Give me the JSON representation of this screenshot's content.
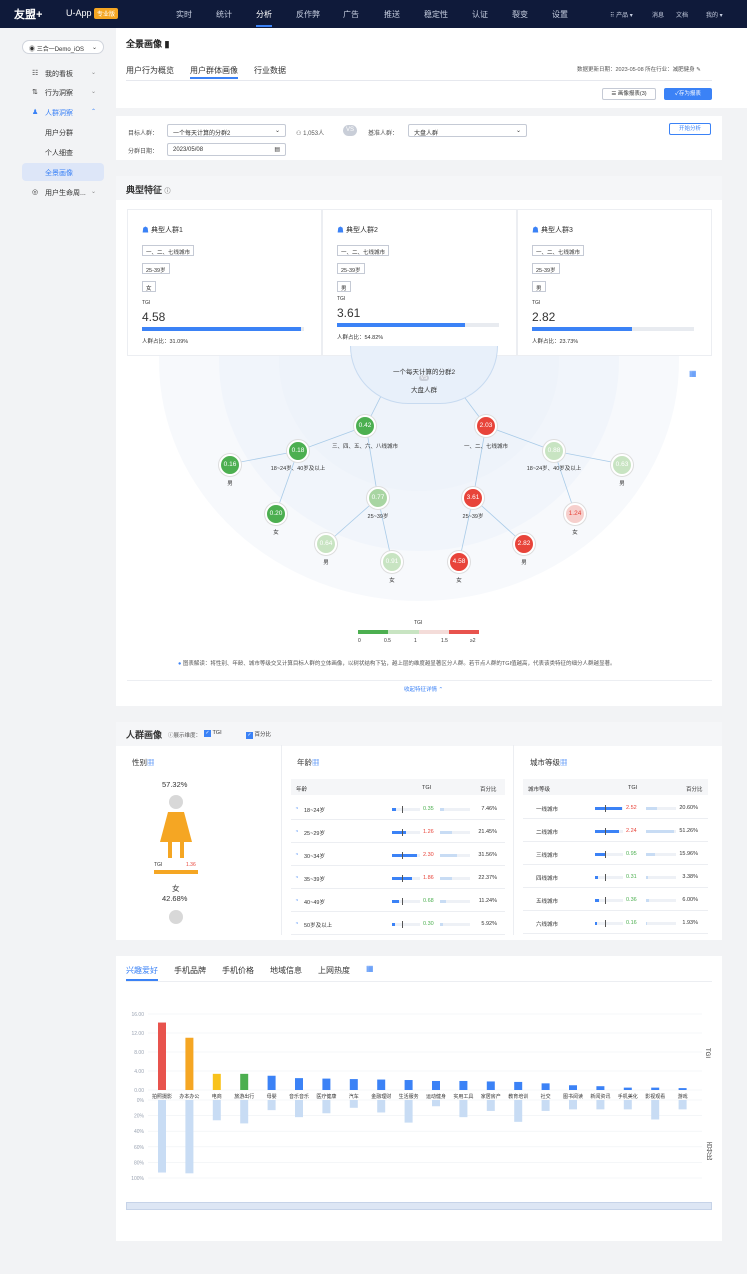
{
  "header": {
    "logo": "友盟+",
    "app": "U-App",
    "app_tag": "专业版",
    "nav": [
      "实时",
      "统计",
      "分析",
      "反作弊",
      "广告",
      "推送",
      "稳定性",
      "认证",
      "裂变",
      "设置"
    ],
    "nav_active": 2,
    "right": [
      "产品",
      "消息",
      "文档",
      "我的"
    ]
  },
  "sidebar": {
    "app_select": "三合一Demo_iOS",
    "items": [
      {
        "label": "我的看板",
        "icon": "☷"
      },
      {
        "label": "行为洞察",
        "icon": "⇅"
      },
      {
        "label": "人群洞察",
        "icon": "♟"
      }
    ],
    "sub": [
      "用户分群",
      "个人细查",
      "全景画像"
    ],
    "last": "用户生命周..."
  },
  "page": {
    "title": "全景画像",
    "tabs": [
      "用户行为概览",
      "用户群体画像",
      "行业数据"
    ],
    "active_tab": 1,
    "update_info": "数据更新日期：2023-05-08 所在行业：减肥健身",
    "report_btn": "画像报表(3)",
    "save_btn": "存为报表"
  },
  "filter": {
    "target_label": "目标人群：",
    "target_value": "一个每天计算的分群2",
    "count": "1,053人",
    "vs": "VS",
    "base_label": "基准人群：",
    "base_value": "大盘人群",
    "date_label": "分群日期：",
    "date_value": "2023/05/08",
    "analyze_btn": "开始分析"
  },
  "typical": {
    "title": "典型特征",
    "groups": [
      {
        "name": "典型人群1",
        "tags": [
          "一、二、七线城市",
          "25-39岁",
          "女"
        ],
        "tgi_label": "TGI",
        "tgi": "4.58",
        "share_label": "人群占比：31.09%",
        "fill": 0.98
      },
      {
        "name": "典型人群2",
        "tags": [
          "一、二、七线城市",
          "25-39岁",
          "男"
        ],
        "tgi_label": "TGI",
        "tgi": "3.61",
        "share_label": "人群占比：54.82%",
        "fill": 0.79
      },
      {
        "name": "典型人群3",
        "tags": [
          "一、二、七线城市",
          "25-39岁",
          "男"
        ],
        "tgi_label": "TGI",
        "tgi": "2.82",
        "share_label": "人群占比：23.73%",
        "fill": 0.62
      }
    ],
    "center_top": "一个每天计算的分群2",
    "center_vs": "VS",
    "center_bottom": "大盘人群",
    "tree": {
      "l_city": "三、四、五、六、八线城市",
      "r_city": "一、二、七线城市",
      "l_age1": "18~24岁、40岁及以上",
      "l_age2": "25~39岁",
      "r_age1": "18~24岁、40岁及以上",
      "r_age2": "25~39岁",
      "n1": "0.42",
      "n2": "2.03",
      "n3": "0.16",
      "n4": "0.18",
      "n5": "0.77",
      "n6": "3.61",
      "n7": "0.88",
      "n8": "0.63",
      "n9": "0.20",
      "n10": "0.64",
      "n11": "0.91",
      "n12": "4.58",
      "n13": "2.82",
      "n14": "1.24",
      "m": "男",
      "f": "女"
    },
    "legend": {
      "title": "TGI",
      "ticks": [
        "0",
        "0.5",
        "1",
        "1.5",
        "≥2"
      ]
    },
    "note": "图表解读：将性别、年龄、城市等级交叉计算目标人群的立体画像，以树状结构下钻，越上层的维度越显著区分人群。若节点人群的TGI值越高，代表该类特征的细分人群越显著。",
    "more": "收起特征详情"
  },
  "portrait": {
    "title": "人群画像",
    "dims_label": "展示维度：",
    "cb1": "TGI",
    "cb2": "百分比",
    "gender": {
      "title": "性别",
      "female_pct": "57.32%",
      "tgi_label": "TGI",
      "tgi": "1.36",
      "female": "女",
      "female_pct2": "42.68%"
    },
    "age": {
      "title": "年龄",
      "cols": [
        "年龄",
        "TGI",
        "百分比"
      ],
      "rows": [
        {
          "k": "18~24岁",
          "tgi": "0.35",
          "pct": "7.46%",
          "tgiv": 0.35,
          "pv": 0.0746
        },
        {
          "k": "25~29岁",
          "tgi": "1.26",
          "pct": "21.45%",
          "tgiv": 1.26,
          "pv": 0.2145
        },
        {
          "k": "30~34岁",
          "tgi": "2.30",
          "pct": "31.56%",
          "tgiv": 2.3,
          "pv": 0.3156
        },
        {
          "k": "35~39岁",
          "tgi": "1.86",
          "pct": "22.37%",
          "tgiv": 1.86,
          "pv": 0.2237
        },
        {
          "k": "40~49岁",
          "tgi": "0.68",
          "pct": "11.24%",
          "tgiv": 0.68,
          "pv": 0.1124
        },
        {
          "k": "50岁及以上",
          "tgi": "0.30",
          "pct": "5.92%",
          "tgiv": 0.3,
          "pv": 0.0592
        }
      ]
    },
    "city": {
      "title": "城市等级",
      "cols": [
        "城市等级",
        "TGI",
        "百分比"
      ],
      "rows": [
        {
          "k": "一线城市",
          "tgi": "2.52",
          "pct": "20.60%",
          "tgiv": 2.52,
          "pv": 0.206
        },
        {
          "k": "二线城市",
          "tgi": "2.24",
          "pct": "51.26%",
          "tgiv": 2.24,
          "pv": 0.5126
        },
        {
          "k": "三线城市",
          "tgi": "0.95",
          "pct": "15.96%",
          "tgiv": 0.95,
          "pv": 0.1596
        },
        {
          "k": "四线城市",
          "tgi": "0.31",
          "pct": "3.38%",
          "tgiv": 0.31,
          "pv": 0.0338
        },
        {
          "k": "五线城市",
          "tgi": "0.36",
          "pct": "6.00%",
          "tgiv": 0.36,
          "pv": 0.06
        },
        {
          "k": "六线城市",
          "tgi": "0.16",
          "pct": "1.93%",
          "tgiv": 0.16,
          "pv": 0.0193
        }
      ]
    }
  },
  "interest": {
    "tabs": [
      "兴趣爱好",
      "手机品牌",
      "手机价格",
      "地域信息",
      "上网热度"
    ],
    "right_top": "TGI",
    "right_bottom": "百分比",
    "chart_data": {
      "type": "bar",
      "categories": [
        "拍照摄影",
        "办本办公",
        "电商",
        "旅游出行",
        "母婴",
        "音乐音乐",
        "医疗健康",
        "汽车",
        "金融理财",
        "生活服务",
        "运动健身",
        "实用工具",
        "家居房产",
        "教育培训",
        "社交",
        "图书阅读",
        "新闻资讯",
        "手机美化",
        "影视观看",
        "游戏"
      ],
      "tgi": [
        14.2,
        11.0,
        3.4,
        3.4,
        3.0,
        2.5,
        2.4,
        2.3,
        2.2,
        2.1,
        1.9,
        1.9,
        1.8,
        1.7,
        1.4,
        1.0,
        0.8,
        0.5,
        0.5,
        0.4
      ],
      "pct": [
        93,
        94,
        26,
        30,
        13,
        22,
        17,
        10,
        16,
        29,
        8,
        22,
        14,
        28,
        14,
        12,
        12,
        12,
        25,
        12
      ],
      "tgi_ticks": [
        "16.00",
        "12.00",
        "8.00",
        "4.00",
        "0.00"
      ],
      "pct_ticks": [
        "0%",
        "20%",
        "40%",
        "60%",
        "80%",
        "100%"
      ],
      "colors": [
        "#e8534d",
        "#f5a623",
        "#f8c21c",
        "#4caf50",
        "#3b82f6"
      ]
    }
  }
}
